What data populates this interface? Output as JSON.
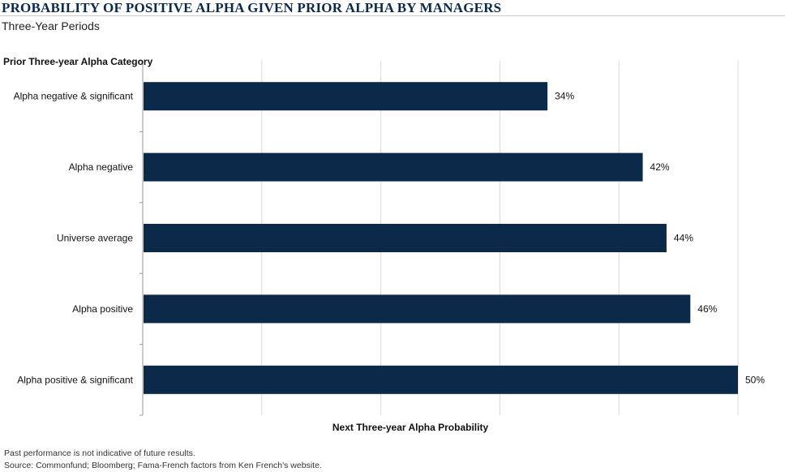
{
  "title": "PROBABILITY OF POSITIVE ALPHA GIVEN PRIOR ALPHA BY MANAGERS",
  "subtitle": "Three-Year Periods",
  "footnotes": [
    "Past performance is not indicative of future results.",
    "Source: Commonfund; Bloomberg; Fama-French factors from Ken French's website."
  ],
  "chart_data": {
    "type": "bar",
    "orientation": "horizontal",
    "ylabel": "Prior Three-year Alpha Category",
    "xlabel": "Next Three-year Alpha Probability",
    "categories": [
      "Alpha negative & significant",
      "Alpha negative",
      "Universe average",
      "Alpha positive",
      "Alpha positive & significant"
    ],
    "values": [
      34,
      42,
      44,
      46,
      50
    ],
    "value_labels": [
      "34%",
      "42%",
      "44%",
      "46%",
      "50%"
    ],
    "xlim": [
      0,
      50
    ],
    "grid": true,
    "bar_color": "#0b2a4a"
  }
}
